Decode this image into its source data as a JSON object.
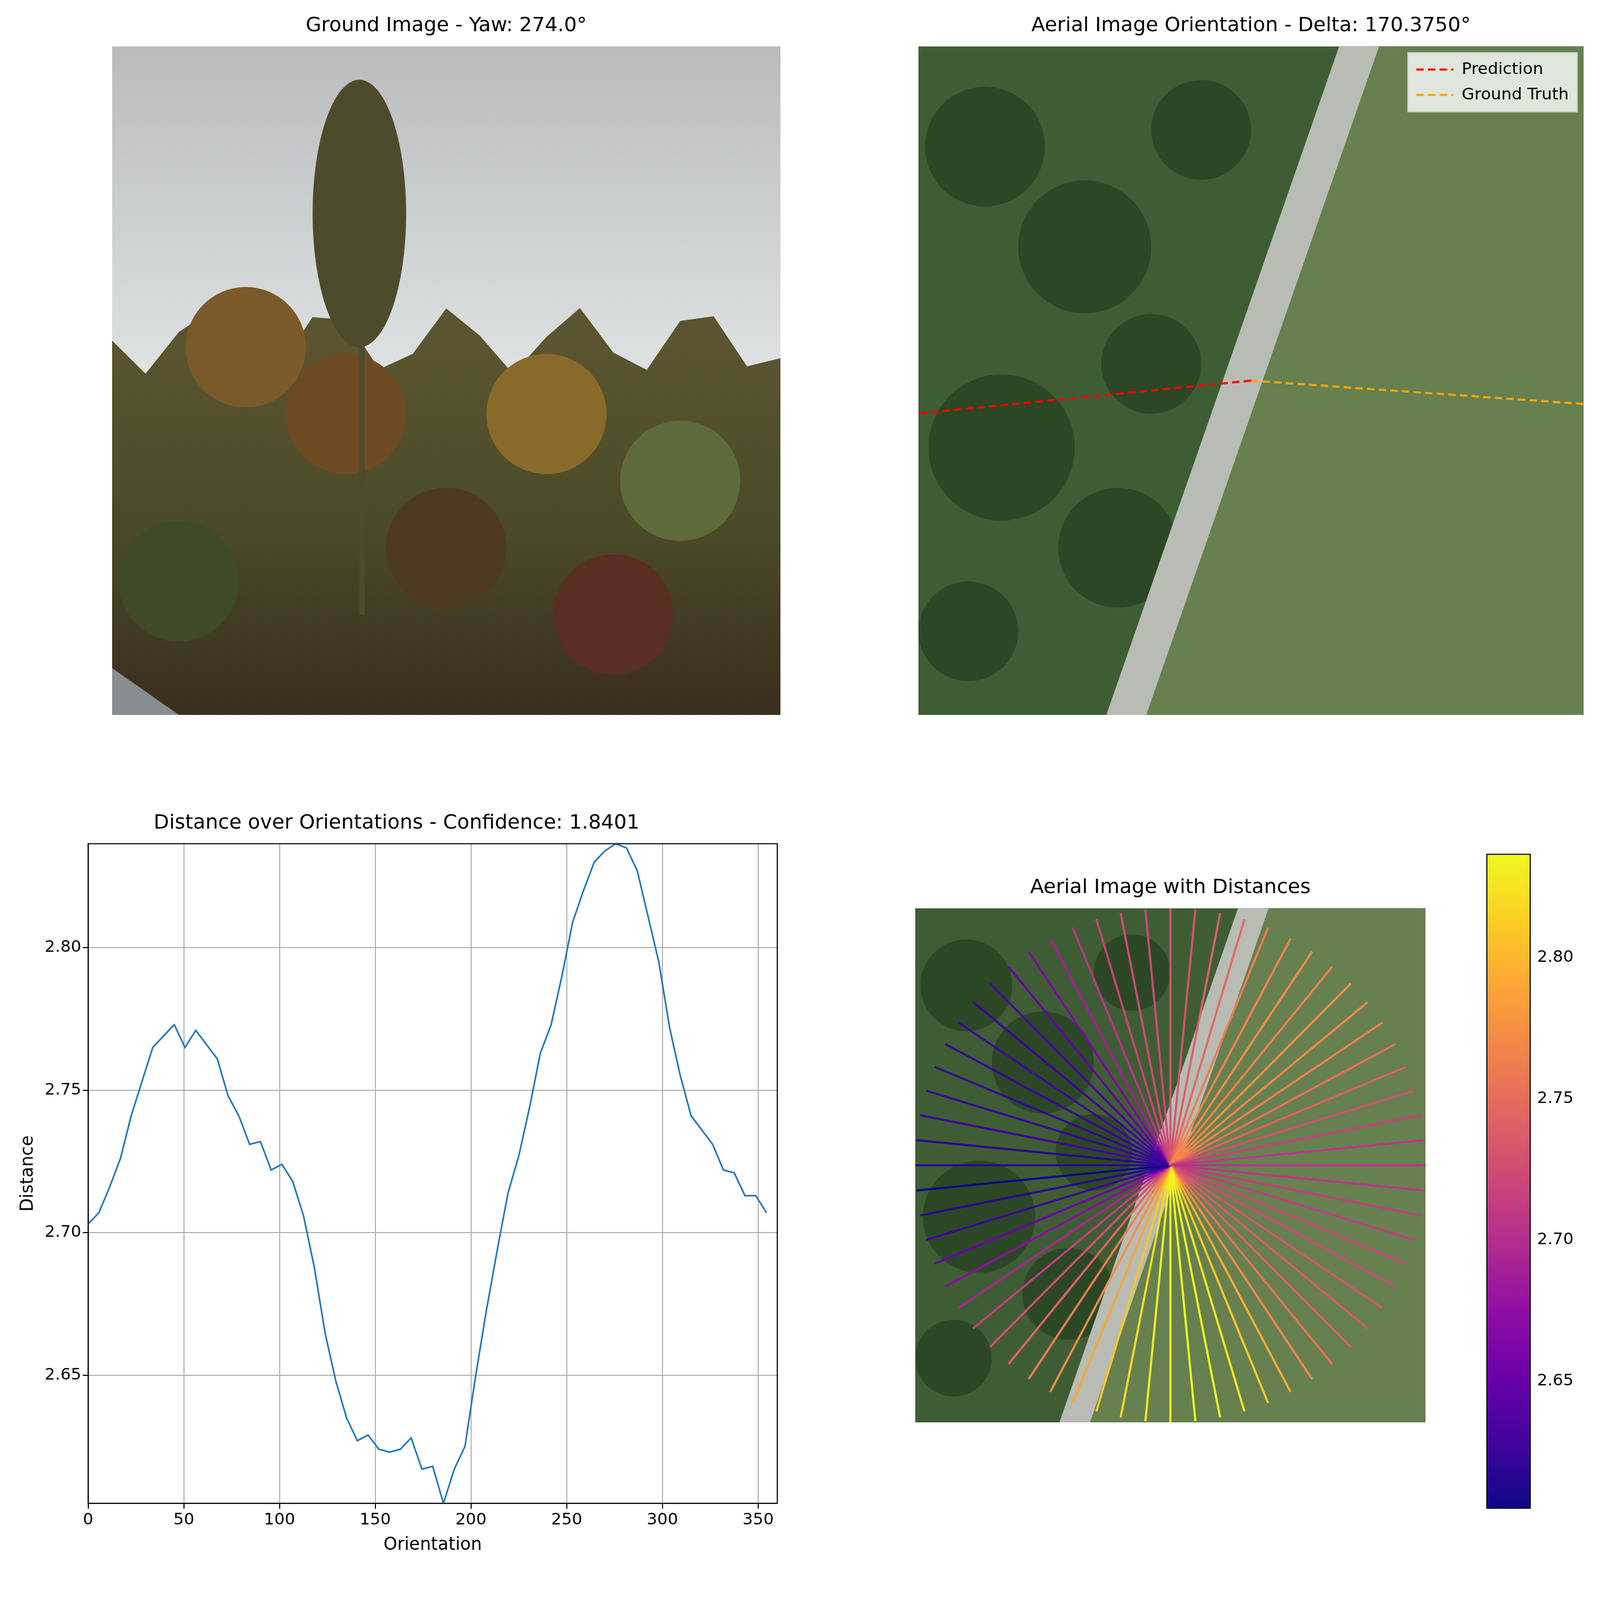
{
  "chart_data": [
    {
      "type": "image",
      "title": "Ground Image - Yaw: 274.0°",
      "tick_labels": false
    },
    {
      "type": "orientation",
      "title": "Aerial Image Orientation - Delta: 170.3750°",
      "tick_labels": false,
      "legend": "upper right",
      "series": [
        {
          "name": "Prediction",
          "color": "#ff0000",
          "line_style": "dashed",
          "values": [
            185.625
          ]
        },
        {
          "name": "Ground Truth",
          "color": "#ffa500",
          "line_style": "dashed",
          "values": [
            356.0
          ]
        }
      ]
    },
    {
      "type": "line",
      "title": "Distance over Orientations - Confidence: 1.8401",
      "x_label": "Orientation",
      "y_label": "Distance",
      "color": "#1f77b4",
      "grid": true,
      "x": [
        0,
        5.625,
        11.25,
        16.875,
        22.5,
        28.125,
        33.75,
        39.375,
        45,
        50.625,
        56.25,
        61.875,
        67.5,
        73.125,
        78.75,
        84.375,
        90,
        95.625,
        101.25,
        106.875,
        112.5,
        118.125,
        123.75,
        129.375,
        135,
        140.625,
        146.25,
        151.875,
        157.5,
        163.125,
        168.75,
        174.375,
        180,
        185.625,
        191.25,
        196.875,
        202.5,
        208.125,
        213.75,
        219.375,
        225,
        230.625,
        236.25,
        241.875,
        247.5,
        253.125,
        258.75,
        264.375,
        270,
        275.625,
        281.25,
        286.875,
        292.5,
        298.125,
        303.75,
        309.375,
        315,
        320.625,
        326.25,
        331.875,
        337.5,
        343.125,
        348.75,
        354.375
      ],
      "values": [
        2.703,
        2.707,
        2.716,
        2.726,
        2.741,
        2.753,
        2.765,
        2.769,
        2.773,
        2.765,
        2.771,
        2.766,
        2.761,
        2.748,
        2.741,
        2.731,
        2.732,
        2.722,
        2.724,
        2.718,
        2.706,
        2.688,
        2.665,
        2.648,
        2.635,
        2.627,
        2.629,
        2.624,
        2.623,
        2.624,
        2.628,
        2.617,
        2.618,
        2.605,
        2.617,
        2.625,
        2.65,
        2.673,
        2.694,
        2.714,
        2.727,
        2.744,
        2.763,
        2.773,
        2.79,
        2.809,
        2.82,
        2.83,
        2.834,
        2.8365,
        2.835,
        2.827,
        2.811,
        2.795,
        2.772,
        2.755,
        2.741,
        2.736,
        2.731,
        2.722,
        2.721,
        2.713,
        2.713,
        2.707
      ],
      "xlim": [
        0,
        360
      ],
      "ylim": [
        2.605,
        2.8365
      ],
      "xticks": [
        0,
        50,
        100,
        150,
        200,
        250,
        300,
        350
      ],
      "yticks": [
        2.65,
        {
          "value": 2.7,
          "label": "2.70"
        },
        2.75,
        {
          "value": 2.8,
          "label": "2.80"
        }
      ]
    },
    {
      "type": "radial",
      "title": "Aerial Image with Distances",
      "tick_labels": false,
      "x": [
        0,
        5.625,
        11.25,
        16.875,
        22.5,
        28.125,
        33.75,
        39.375,
        45,
        50.625,
        56.25,
        61.875,
        67.5,
        73.125,
        78.75,
        84.375,
        90,
        95.625,
        101.25,
        106.875,
        112.5,
        118.125,
        123.75,
        129.375,
        135,
        140.625,
        146.25,
        151.875,
        157.5,
        163.125,
        168.75,
        174.375,
        180,
        185.625,
        191.25,
        196.875,
        202.5,
        208.125,
        213.75,
        219.375,
        225,
        230.625,
        236.25,
        241.875,
        247.5,
        253.125,
        258.75,
        264.375,
        270,
        275.625,
        281.25,
        286.875,
        292.5,
        298.125,
        303.75,
        309.375,
        315,
        320.625,
        326.25,
        331.875,
        337.5,
        343.125,
        348.75,
        354.375
      ],
      "values": [
        2.703,
        2.707,
        2.716,
        2.726,
        2.741,
        2.753,
        2.765,
        2.769,
        2.773,
        2.765,
        2.771,
        2.766,
        2.761,
        2.748,
        2.741,
        2.731,
        2.732,
        2.722,
        2.724,
        2.718,
        2.706,
        2.688,
        2.665,
        2.648,
        2.635,
        2.627,
        2.629,
        2.624,
        2.623,
        2.624,
        2.628,
        2.617,
        2.618,
        2.605,
        2.617,
        2.625,
        2.65,
        2.673,
        2.694,
        2.714,
        2.727,
        2.744,
        2.763,
        2.773,
        2.79,
        2.809,
        2.82,
        2.83,
        2.834,
        2.8365,
        2.835,
        2.827,
        2.811,
        2.795,
        2.772,
        2.755,
        2.741,
        2.736,
        2.731,
        2.722,
        2.721,
        2.713,
        2.713,
        2.707
      ],
      "colorbar_range": [
        2.605,
        2.8365
      ],
      "colorbar_ticks": [
        2.65,
        {
          "value": 2.7,
          "label": "2.70"
        },
        2.75,
        {
          "value": 2.8,
          "label": "2.80"
        }
      ]
    }
  ]
}
